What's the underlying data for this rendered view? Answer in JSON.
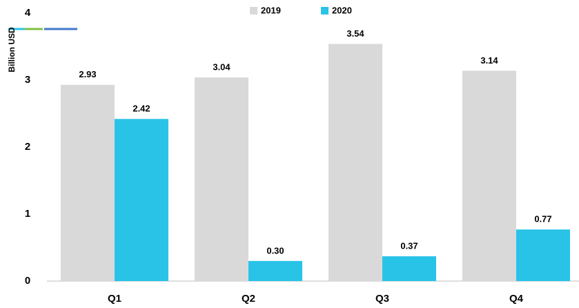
{
  "chart_data": {
    "type": "bar",
    "y_label": "Billion USD",
    "categories": [
      "Q1",
      "Q2",
      "Q3",
      "Q4"
    ],
    "series": [
      {
        "name": "2019",
        "color": "#d9d9d9",
        "values": [
          2.93,
          3.04,
          3.54,
          3.14
        ],
        "value_labels": [
          "2.93",
          "3.04",
          "3.54",
          "3.14"
        ]
      },
      {
        "name": "2020",
        "color": "#29c3e8",
        "values": [
          2.42,
          0.3,
          0.37,
          0.77
        ],
        "value_labels": [
          "2.42",
          "0.30",
          "0.37",
          "0.77"
        ]
      }
    ],
    "ylim": [
      0,
      4
    ],
    "yticks": [
      0,
      1,
      2,
      3,
      4
    ],
    "grid": false,
    "legend": "top"
  }
}
